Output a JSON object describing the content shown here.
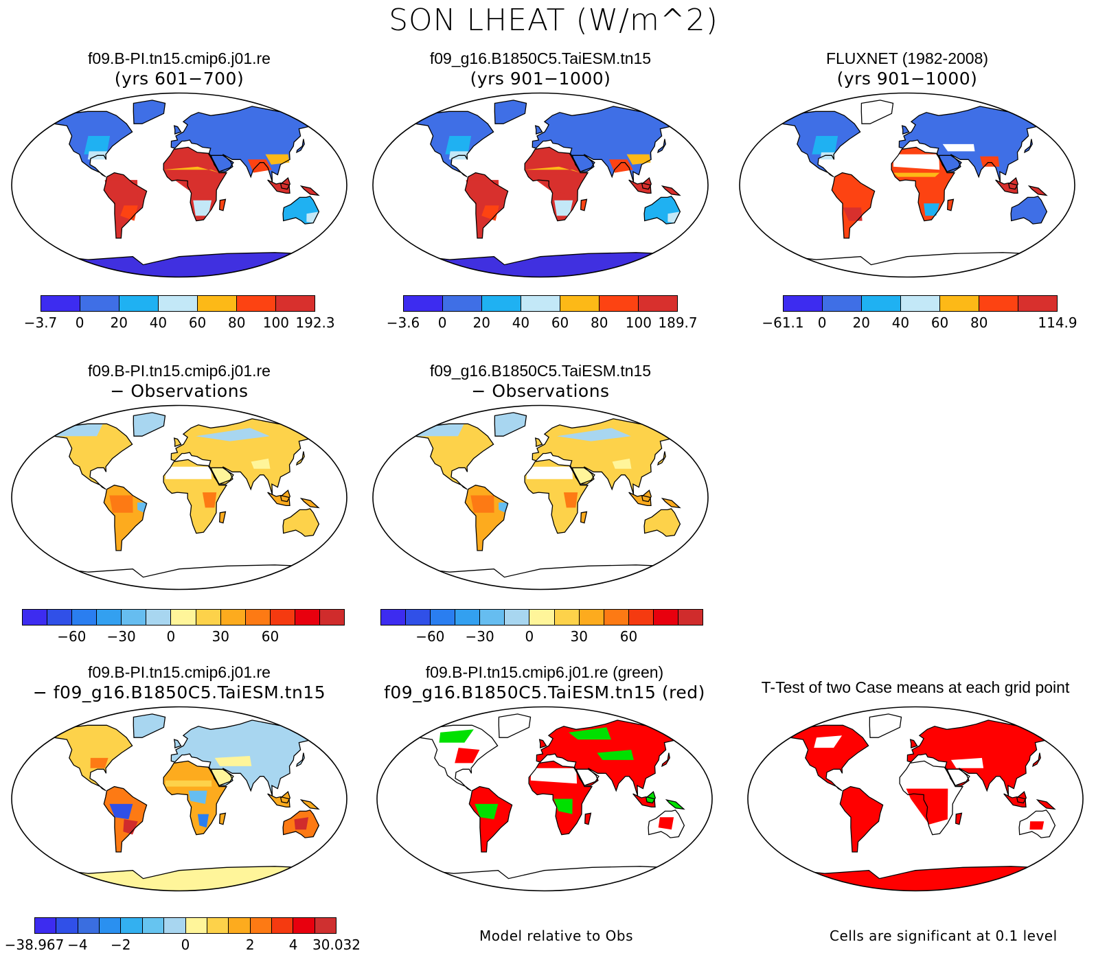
{
  "title": "SON LHEAT (W/m^2)",
  "panels": [
    {
      "id": "p1",
      "title": "f09.B-PI.tn15.cmip6.j01.re",
      "subtitle": "(yrs 601−700)",
      "scheme": "mean",
      "antarctica": "#4030e0"
    },
    {
      "id": "p2",
      "title": "f09_g16.B1850C5.TaiESM.tn15",
      "subtitle": "(yrs 901−1000)",
      "scheme": "mean",
      "antarctica": "#4030e0"
    },
    {
      "id": "p3",
      "title": "FLUXNET (1982-2008)",
      "subtitle": "(yrs 901−1000)",
      "scheme": "obs",
      "antarctica": "#ffffff"
    },
    {
      "id": "p4",
      "title": "f09.B-PI.tn15.cmip6.j01.re",
      "subtitle": "− Observations",
      "scheme": "diff",
      "antarctica": "#ffffff"
    },
    {
      "id": "p5",
      "title": "f09_g16.B1850C5.TaiESM.tn15",
      "subtitle": "− Observations",
      "scheme": "diff",
      "antarctica": "#ffffff"
    },
    {
      "id": "p6",
      "title": "f09.B-PI.tn15.cmip6.j01.re",
      "subtitle": "− f09_g16.B1850C5.TaiESM.tn15",
      "scheme": "diff2",
      "antarctica": "#fff59a"
    },
    {
      "id": "p7",
      "title": "f09.B-PI.tn15.cmip6.j01.re (green)",
      "subtitle": "f09_g16.B1850C5.TaiESM.tn15 (red)",
      "scheme": "compare",
      "antarctica": "#ffffff"
    },
    {
      "id": "p8",
      "title": "T-Test of two Case means at each grid point",
      "subtitle": "",
      "scheme": "ttest",
      "antarctica": "#ff0000"
    }
  ],
  "colorbars": {
    "cb1": {
      "colors": [
        "#3d2cf0",
        "#3f6fe6",
        "#1fb1f2",
        "#c3e8f7",
        "#fdb917",
        "#fd4312",
        "#d8302d"
      ],
      "ticks": [
        "−3.7",
        "0",
        "20",
        "40",
        "60",
        "80",
        "100",
        "192.3"
      ]
    },
    "cb2": {
      "colors": [
        "#3d2cf0",
        "#3f6fe6",
        "#1fb1f2",
        "#c3e8f7",
        "#fdb917",
        "#fd4312",
        "#d8302d"
      ],
      "ticks": [
        "−3.6",
        "0",
        "20",
        "40",
        "60",
        "80",
        "100",
        "189.7"
      ]
    },
    "cb3": {
      "colors": [
        "#3d2cf0",
        "#3f6fe6",
        "#1fb1f2",
        "#c3e8f7",
        "#fdb917",
        "#fd4312",
        "#d8302d"
      ],
      "ticks": [
        "−61.1",
        "0",
        "20",
        "40",
        "60",
        "80",
        "114.9"
      ]
    },
    "cb4": {
      "colors": [
        "#3d2cf0",
        "#3050e8",
        "#2a7ef0",
        "#33a0f0",
        "#66bdf0",
        "#a8d6f0",
        "#fff59a",
        "#fdd24a",
        "#fdab1e",
        "#fd7a14",
        "#f53a10",
        "#e8000e",
        "#d02c2c"
      ],
      "ticks": [
        "−60",
        "−30",
        "0",
        "30",
        "60"
      ]
    },
    "cb5": {
      "colors": [
        "#3d2cf0",
        "#3050e8",
        "#2a7ef0",
        "#33a0f0",
        "#66bdf0",
        "#a8d6f0",
        "#fff59a",
        "#fdd24a",
        "#fdab1e",
        "#fd7a14",
        "#f53a10",
        "#e8000e",
        "#d02c2c"
      ],
      "ticks": [
        "−60",
        "−30",
        "0",
        "30",
        "60"
      ]
    },
    "cb6": {
      "colors": [
        "#3d2cf0",
        "#3050e8",
        "#3a6ee0",
        "#2a90f0",
        "#33b0f0",
        "#66c4f0",
        "#a8d6f0",
        "#fff59a",
        "#fdd24a",
        "#fdab1e",
        "#fd7a14",
        "#f53a10",
        "#e8000e",
        "#cf3030"
      ],
      "ticks": [
        "−38.967",
        "−4",
        "−2",
        "0",
        "2",
        "4",
        "30.032"
      ]
    }
  },
  "notes": {
    "compare": "Model relative to Obs",
    "ttest": "Cells are significant at 0.1 level"
  }
}
